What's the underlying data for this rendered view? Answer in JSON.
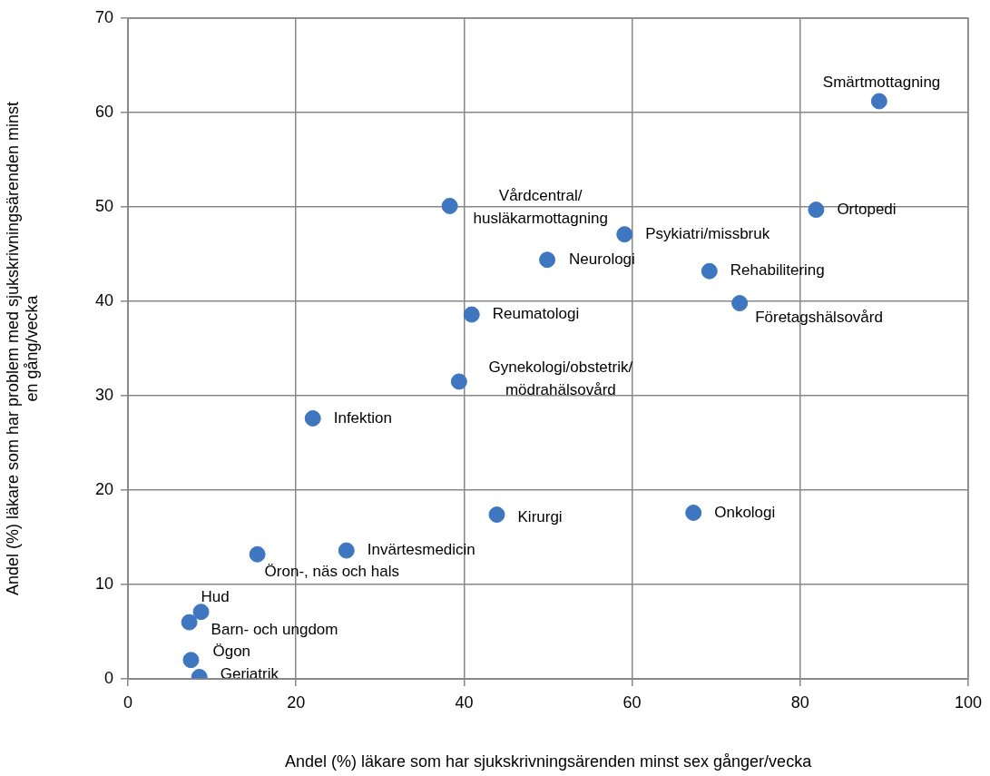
{
  "chart_data": {
    "type": "scatter",
    "xlabel": "Andel (%) läkare som har sjukskrivningsärenden minst sex gånger/vecka",
    "ylabel": "Andel (%) läkare som har problem med sjukskrivningsärenden minst en gång/vecka",
    "xlim": [
      0,
      100
    ],
    "xticks": [
      0,
      20,
      40,
      60,
      80,
      100
    ],
    "ylim": [
      0,
      70
    ],
    "yticks": [
      0,
      10,
      20,
      30,
      40,
      50,
      60,
      70
    ],
    "grid": true,
    "legend": false,
    "marker": "circle",
    "series": [
      {
        "color": "#3f76c0",
        "x": [
          89.4,
          81.9,
          59.1,
          49.9,
          69.2,
          72.8,
          38.3,
          40.9,
          39.4,
          22.0,
          43.9,
          67.3,
          26.0,
          15.4,
          8.7,
          7.3,
          7.5,
          8.5
        ],
        "values": [
          61.2,
          49.7,
          47.1,
          44.4,
          43.2,
          39.8,
          50.1,
          38.6,
          31.5,
          27.6,
          17.4,
          17.6,
          13.6,
          13.2,
          7.1,
          6.0,
          2.0,
          0.2
        ]
      }
    ],
    "annotations": [
      {
        "text": "Smärtmottagning",
        "x": 89.4,
        "y": 61.2
      },
      {
        "text": "Ortopedi",
        "x": 81.9,
        "y": 49.7
      },
      {
        "text": "Psykiatri/missbruk",
        "x": 59.1,
        "y": 47.1
      },
      {
        "text": "Neurologi",
        "x": 49.9,
        "y": 44.4
      },
      {
        "text": "Rehabilitering",
        "x": 69.2,
        "y": 43.2
      },
      {
        "text": "Företagshälsovård",
        "x": 72.8,
        "y": 39.8
      },
      {
        "text": "Vårdcentral/ husläkarmottagning",
        "x": 38.3,
        "y": 50.1
      },
      {
        "text": "Reumatologi",
        "x": 40.9,
        "y": 38.6
      },
      {
        "text": "Gynekologi/obstetrik/ mödrahälsovård",
        "x": 39.4,
        "y": 31.5
      },
      {
        "text": "Infektion",
        "x": 22.0,
        "y": 27.6
      },
      {
        "text": "Kirurgi",
        "x": 43.9,
        "y": 17.4
      },
      {
        "text": "Onkologi",
        "x": 67.3,
        "y": 17.6
      },
      {
        "text": "Invärtesmedicin",
        "x": 26.0,
        "y": 13.6
      },
      {
        "text": "Öron-, näs och hals",
        "x": 15.4,
        "y": 13.2
      },
      {
        "text": "Hud",
        "x": 8.7,
        "y": 7.1
      },
      {
        "text": "Barn- och ungdom",
        "x": 7.3,
        "y": 6.0
      },
      {
        "text": "Ögon",
        "x": 7.5,
        "y": 2.0
      },
      {
        "text": "Geriatrik",
        "x": 8.5,
        "y": 0.2
      }
    ]
  }
}
